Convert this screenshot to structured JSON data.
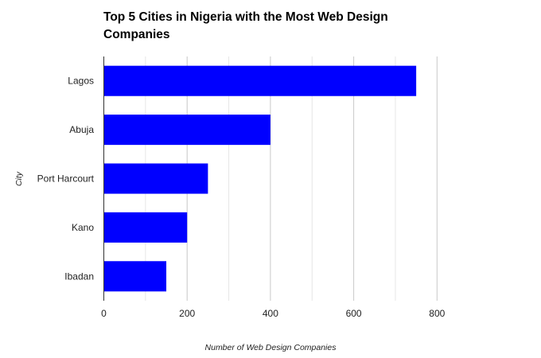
{
  "chart_data": {
    "type": "bar",
    "orientation": "horizontal",
    "title": "Top 5 Cities in Nigeria with the Most Web Design Companies",
    "xlabel": "Number of Web Design Companies",
    "ylabel": "City",
    "categories": [
      "Lagos",
      "Abuja",
      "Port Harcourt",
      "Kano",
      "Ibadan"
    ],
    "values": [
      750,
      400,
      250,
      200,
      150
    ],
    "xlim": [
      0,
      800
    ],
    "xticks": [
      "0",
      "200",
      "400",
      "600",
      "800"
    ],
    "grid": true,
    "bar_color": "#0000ff"
  }
}
